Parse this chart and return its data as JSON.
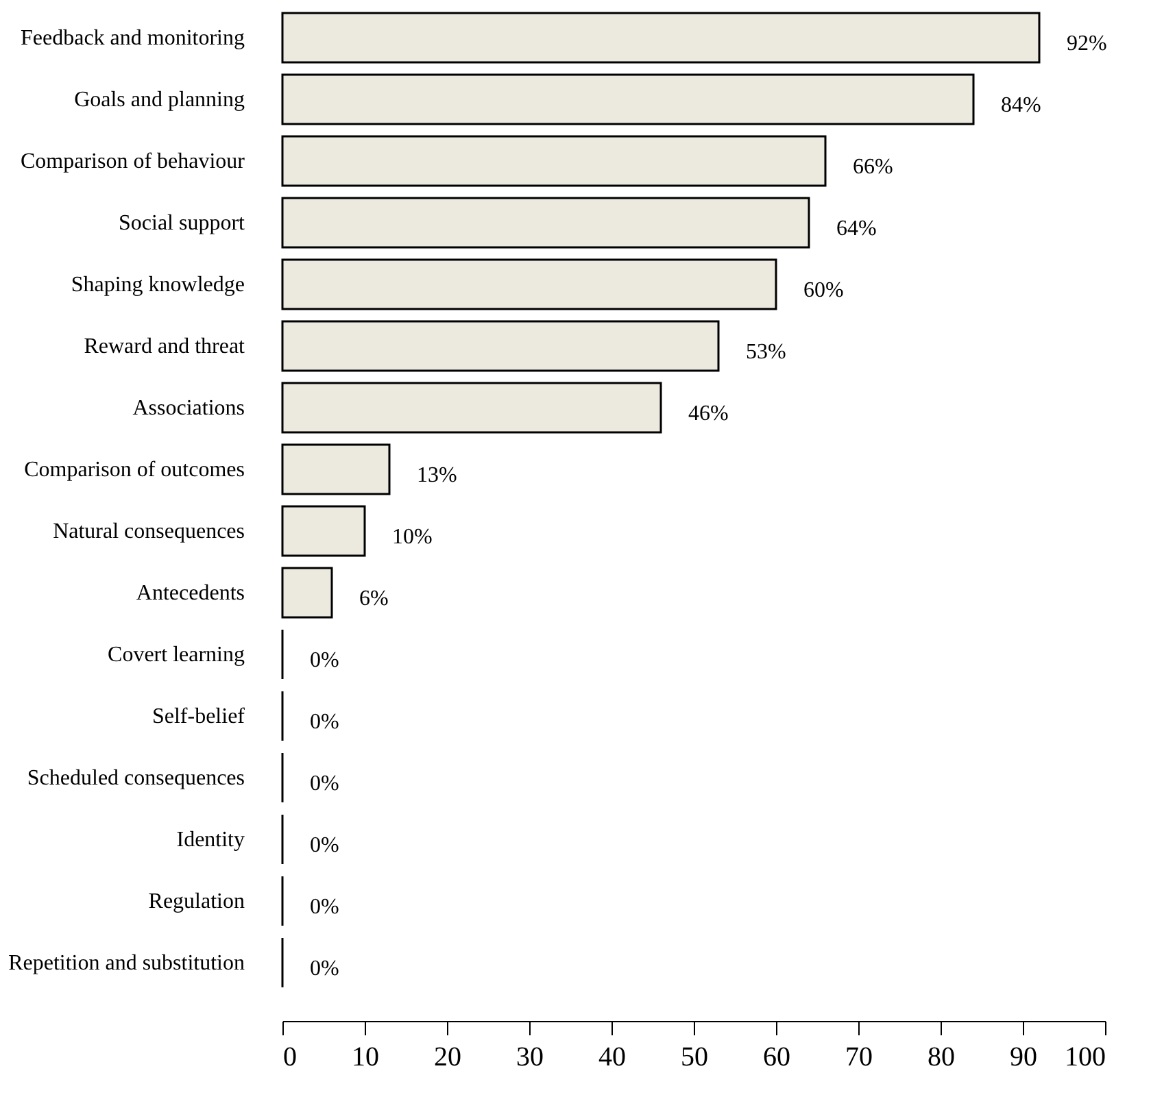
{
  "chart_data": {
    "type": "bar",
    "orientation": "horizontal",
    "categories": [
      "Feedback and monitoring",
      "Goals and planning",
      "Comparison of behaviour",
      "Social support",
      "Shaping knowledge",
      "Reward and threat",
      "Associations",
      "Comparison of outcomes",
      "Natural consequences",
      "Antecedents",
      "Covert learning",
      "Self-belief",
      "Scheduled consequences",
      "Identity",
      "Regulation",
      "Repetition and substitution"
    ],
    "values": [
      92,
      84,
      66,
      64,
      60,
      53,
      46,
      13,
      10,
      6,
      0,
      0,
      0,
      0,
      0,
      0
    ],
    "value_labels": [
      "92%",
      "84%",
      "66%",
      "64%",
      "60%",
      "53%",
      "46%",
      "13%",
      "10%",
      "6%",
      "0%",
      "0%",
      "0%",
      "0%",
      "0%",
      "0%"
    ],
    "colors": [
      "#ece9df",
      "#ece9df",
      "#ece9df",
      "#ece9df",
      "#ece9df",
      "#ece9df",
      "#ece9df",
      "#ece9df",
      "#ece9df",
      "#ece9df",
      "#000000",
      "#000000",
      "#000000",
      "#000000",
      "#000000",
      "#000000"
    ],
    "xlim": [
      0,
      100
    ],
    "xticks": [
      0,
      10,
      20,
      30,
      40,
      50,
      60,
      70,
      80,
      90,
      100
    ],
    "grid": false
  }
}
